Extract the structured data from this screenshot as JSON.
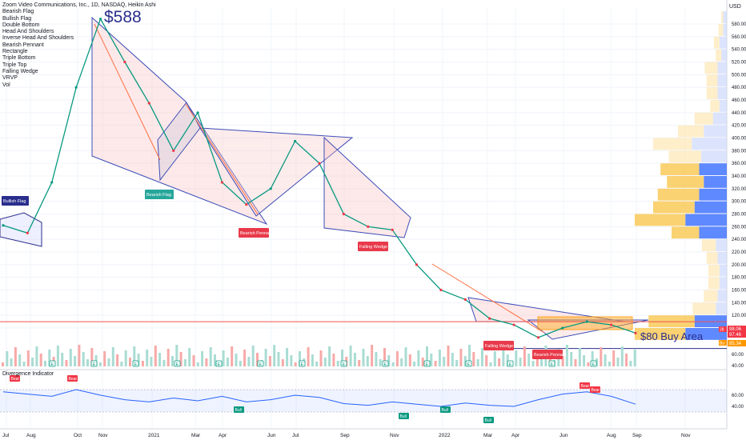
{
  "header": {
    "title": "Zoom Video Communications, Inc., 1D, NASDAQ, Heikin Ashi",
    "indicators": [
      "Bearish Flag",
      "Bullish Flag",
      "Double Bottom",
      "Head And Shoulders",
      "Inverse Head And Shoulders",
      "Bearish Pennant",
      "Rectangle",
      "Triple Bottom",
      "Triple Top",
      "Falling Wedge",
      "VRVP",
      "Vol"
    ],
    "currency": "USD"
  },
  "annotations": {
    "peak_label": "$588",
    "buy_label": "$80 Buy Area",
    "pattern_labels": [
      {
        "text": "Bullish Flag",
        "color": "#2a2e8c"
      },
      {
        "text": "Bearish Flag",
        "color": "#26a69a"
      },
      {
        "text": "Bearish Pennant",
        "color": "#e83a4a"
      },
      {
        "text": "Falling Wedge",
        "color": "#e83a4a"
      },
      {
        "text": "Falling Wedge",
        "color": "#e83a4a"
      },
      {
        "text": "Bearish Pennant",
        "color": "#e83a4a"
      }
    ],
    "price_tags": [
      {
        "text": "98.06",
        "color": "#f23645"
      },
      {
        "text": "97.46",
        "color": "#f23645"
      },
      {
        "text": "85.34",
        "color": "#ff9800"
      }
    ],
    "tag_prefixes": [
      "28",
      "Bu"
    ],
    "oscillator_title": "Divergence Indicator",
    "oscillator_labels": [
      "Bear",
      "Bear",
      "Bull",
      "Bull",
      "Bull",
      "Bull",
      "Bear",
      "Bear"
    ],
    "volume_markers": [
      "E",
      "E",
      "E",
      "E",
      "E",
      "E",
      "E",
      "E",
      "E",
      "E",
      "E",
      "E",
      "E",
      "E"
    ]
  },
  "chart_data": {
    "type": "line",
    "title": "Zoom Video Communications, Inc., 1D, NASDAQ, Heikin Ashi",
    "x_ticks": [
      "Jul",
      "Aug",
      "Oct",
      "Nov",
      "2021",
      "Mar",
      "Apr",
      "Jun",
      "Jul",
      "Sep",
      "Nov",
      "2022",
      "Mar",
      "Apr",
      "Jun",
      "Aug",
      "Sep",
      "Nov"
    ],
    "y_ticks": [
      580,
      560,
      540,
      520,
      500,
      480,
      460,
      440,
      420,
      400,
      380,
      360,
      340,
      320,
      300,
      280,
      260,
      240,
      220,
      200,
      180,
      160,
      140,
      120,
      100
    ],
    "volume_ticks": [
      60,
      40
    ],
    "osc_ticks": [
      60,
      40
    ],
    "ylabel": "USD",
    "ylim": [
      70,
      600
    ],
    "series": [
      {
        "x": [
          "Jul 2020",
          "Aug 2020",
          "Sep 2020",
          "Oct 2020",
          "Nov 2020",
          "Dec 2020",
          "Jan 2021",
          "Feb 2021",
          "Mar 2021",
          "Apr 2021",
          "May 2021",
          "Jun 2021",
          "Jul 2021",
          "Aug 2021",
          "Sep 2021",
          "Oct 2021",
          "Nov 2021",
          "Dec 2021",
          "Jan 2022",
          "Feb 2022",
          "Mar 2022",
          "Apr 2022",
          "May 2022",
          "Jun 2022",
          "Jul 2022",
          "Aug 2022",
          "Sep 2022"
        ],
        "values": [
          262,
          250,
          330,
          480,
          588,
          520,
          455,
          380,
          440,
          330,
          295,
          320,
          395,
          360,
          280,
          260,
          255,
          200,
          160,
          145,
          115,
          105,
          85,
          100,
          110,
          105,
          92
        ]
      }
    ],
    "oscillator": {
      "values": [
        66,
        62,
        58,
        70,
        60,
        52,
        48,
        55,
        50,
        58,
        48,
        52,
        60,
        56,
        45,
        42,
        48,
        44,
        40,
        46,
        42,
        40,
        52,
        62,
        66,
        58,
        44
      ]
    },
    "volume_profile": {
      "ranges": [
        [
          80,
          100
        ],
        [
          100,
          120
        ],
        [
          120,
          140
        ],
        [
          140,
          160
        ],
        [
          160,
          180
        ],
        [
          180,
          200
        ],
        [
          200,
          220
        ],
        [
          220,
          240
        ],
        [
          240,
          260
        ],
        [
          260,
          280
        ],
        [
          280,
          300
        ],
        [
          300,
          320
        ],
        [
          320,
          340
        ],
        [
          340,
          360
        ],
        [
          360,
          380
        ],
        [
          380,
          400
        ],
        [
          400,
          420
        ],
        [
          420,
          440
        ],
        [
          440,
          460
        ],
        [
          460,
          480
        ],
        [
          480,
          500
        ],
        [
          500,
          520
        ],
        [
          520,
          540
        ],
        [
          540,
          560
        ],
        [
          560,
          580
        ],
        [
          580,
          600
        ]
      ],
      "up": [
        0.55,
        0.5,
        0.25,
        0.15,
        0.12,
        0.12,
        0.12,
        0.15,
        0.3,
        0.55,
        0.45,
        0.45,
        0.4,
        0.42,
        0.35,
        0.42,
        0.28,
        0.2,
        0.1,
        0.12,
        0.12,
        0.14,
        0.06,
        0.06,
        0.05,
        0.02
      ],
      "down": [
        0.45,
        0.35,
        0.12,
        0.1,
        0.08,
        0.08,
        0.1,
        0.12,
        0.3,
        0.45,
        0.35,
        0.3,
        0.25,
        0.3,
        0.28,
        0.38,
        0.25,
        0.15,
        0.08,
        0.1,
        0.1,
        0.1,
        0.06,
        0.08,
        0.04,
        0.04
      ]
    },
    "levels": {
      "resistance": 110,
      "support": 85.34,
      "peak": 588
    }
  }
}
